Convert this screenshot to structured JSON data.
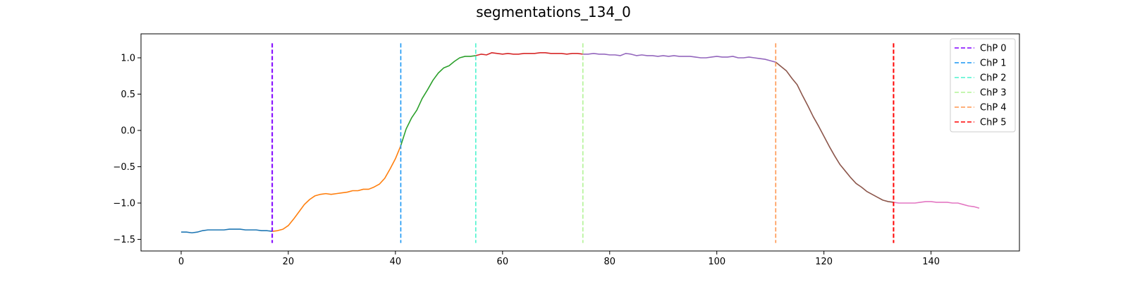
{
  "chart_data": {
    "type": "line",
    "title": "segmentations_134_0",
    "xlabel": "",
    "ylabel": "",
    "xlim": [
      -7.5,
      156.5
    ],
    "ylim": [
      -1.66,
      1.33
    ],
    "xticks": [
      0,
      20,
      40,
      60,
      80,
      100,
      120,
      140
    ],
    "xtick_labels": [
      "0",
      "20",
      "40",
      "60",
      "80",
      "100",
      "120",
      "140"
    ],
    "yticks": [
      -1.5,
      -1.0,
      -0.5,
      0.0,
      0.5,
      1.0
    ],
    "ytick_labels": [
      "−1.5",
      "−1.0",
      "−0.5",
      "0.0",
      "0.5",
      "1.0"
    ],
    "grid": false,
    "legend_position": "top-right",
    "series": [
      {
        "color": "#1f77b4",
        "x": [
          0,
          1,
          2,
          3,
          4,
          5,
          6,
          7,
          8,
          9,
          10,
          11,
          12,
          13,
          14,
          15,
          16,
          17
        ],
        "y": [
          -1.4,
          -1.4,
          -1.41,
          -1.4,
          -1.38,
          -1.37,
          -1.37,
          -1.37,
          -1.37,
          -1.36,
          -1.36,
          -1.36,
          -1.37,
          -1.37,
          -1.37,
          -1.38,
          -1.38,
          -1.39
        ]
      },
      {
        "color": "#ff7f0e",
        "x": [
          17,
          18,
          19,
          20,
          21,
          22,
          23,
          24,
          25,
          26,
          27,
          28,
          29,
          30,
          31,
          32,
          33,
          34,
          35,
          36,
          37,
          38,
          39,
          40,
          41
        ],
        "y": [
          -1.39,
          -1.38,
          -1.36,
          -1.31,
          -1.22,
          -1.12,
          -1.02,
          -0.95,
          -0.9,
          -0.88,
          -0.87,
          -0.88,
          -0.87,
          -0.86,
          -0.85,
          -0.83,
          -0.83,
          -0.81,
          -0.81,
          -0.78,
          -0.74,
          -0.66,
          -0.53,
          -0.39,
          -0.21
        ]
      },
      {
        "color": "#2ca02c",
        "x": [
          41,
          42,
          43,
          44,
          45,
          46,
          47,
          48,
          49,
          50,
          51,
          52,
          53,
          54,
          55
        ],
        "y": [
          -0.21,
          0.02,
          0.17,
          0.28,
          0.44,
          0.56,
          0.69,
          0.79,
          0.86,
          0.89,
          0.95,
          1.0,
          1.02,
          1.02,
          1.03
        ]
      },
      {
        "color": "#d62728",
        "x": [
          55,
          56,
          57,
          58,
          59,
          60,
          61,
          62,
          63,
          64,
          65,
          66,
          67,
          68,
          69,
          70,
          71,
          72,
          73,
          74,
          75
        ],
        "y": [
          1.03,
          1.05,
          1.04,
          1.07,
          1.06,
          1.05,
          1.06,
          1.05,
          1.05,
          1.06,
          1.06,
          1.06,
          1.07,
          1.07,
          1.06,
          1.06,
          1.06,
          1.05,
          1.06,
          1.06,
          1.05
        ]
      },
      {
        "color": "#9467bd",
        "x": [
          75,
          76,
          77,
          78,
          79,
          80,
          81,
          82,
          83,
          84,
          85,
          86,
          87,
          88,
          89,
          90,
          91,
          92,
          93,
          94,
          95,
          96,
          97,
          98,
          99,
          100,
          101,
          102,
          103,
          104,
          105,
          106,
          107,
          108,
          109,
          110,
          111
        ],
        "y": [
          1.05,
          1.05,
          1.06,
          1.05,
          1.05,
          1.04,
          1.04,
          1.03,
          1.06,
          1.05,
          1.03,
          1.04,
          1.03,
          1.03,
          1.02,
          1.03,
          1.02,
          1.03,
          1.02,
          1.02,
          1.02,
          1.01,
          1.0,
          1.0,
          1.01,
          1.02,
          1.01,
          1.01,
          1.02,
          1.0,
          1.0,
          1.01,
          1.0,
          0.99,
          0.98,
          0.96,
          0.94
        ]
      },
      {
        "color": "#8c564b",
        "x": [
          111,
          112,
          113,
          114,
          115,
          116,
          117,
          118,
          119,
          120,
          121,
          122,
          123,
          124,
          125,
          126,
          127,
          128,
          129,
          130,
          131,
          132,
          133
        ],
        "y": [
          0.94,
          0.88,
          0.82,
          0.72,
          0.63,
          0.48,
          0.34,
          0.19,
          0.06,
          -0.08,
          -0.22,
          -0.35,
          -0.47,
          -0.56,
          -0.65,
          -0.73,
          -0.78,
          -0.84,
          -0.88,
          -0.92,
          -0.96,
          -0.98,
          -0.99
        ]
      },
      {
        "color": "#e377c2",
        "x": [
          133,
          134,
          135,
          136,
          137,
          138,
          139,
          140,
          141,
          142,
          143,
          144,
          145,
          146,
          147,
          148,
          149
        ],
        "y": [
          -0.99,
          -1.0,
          -1.0,
          -1.0,
          -1.0,
          -0.99,
          -0.98,
          -0.98,
          -0.99,
          -0.99,
          -0.99,
          -1.0,
          -1.0,
          -1.02,
          -1.04,
          -1.05,
          -1.07
        ]
      }
    ],
    "changepoints": [
      {
        "label": "ChP 0",
        "x": 17,
        "color": "#8000ff"
      },
      {
        "label": "ChP 1",
        "x": 41,
        "color": "#1996f3"
      },
      {
        "label": "ChP 2",
        "x": 55,
        "color": "#4df3ce"
      },
      {
        "label": "ChP 3",
        "x": 75,
        "color": "#b2f396"
      },
      {
        "label": "ChP 4",
        "x": 111,
        "color": "#ff964f"
      },
      {
        "label": "ChP 5",
        "x": 133,
        "color": "#ff0000"
      }
    ],
    "changepoint_span": [
      -1.55,
      1.2
    ]
  }
}
